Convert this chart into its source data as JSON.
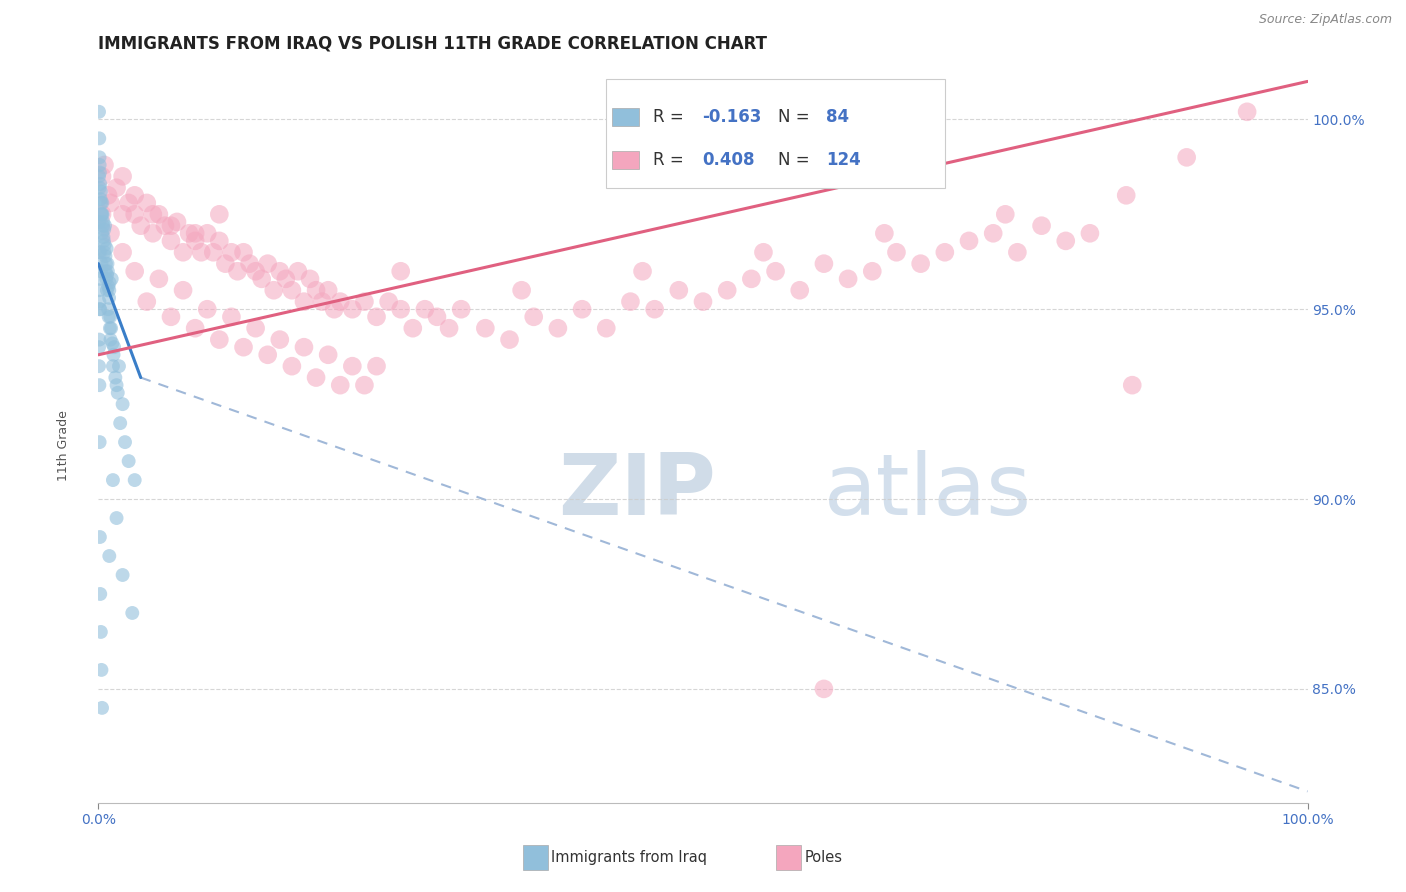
{
  "title": "IMMIGRANTS FROM IRAQ VS POLISH 11TH GRADE CORRELATION CHART",
  "source_text": "Source: ZipAtlas.com",
  "ylabel": "11th Grade",
  "x_min": 0.0,
  "x_max": 100.0,
  "y_min": 82.0,
  "y_max": 101.5,
  "y_ticks": [
    85.0,
    90.0,
    95.0,
    100.0
  ],
  "y_tick_labels": [
    "85.0%",
    "90.0%",
    "95.0%",
    "100.0%"
  ],
  "x_tick_labels": [
    "0.0%",
    "100.0%"
  ],
  "blue_R": -0.163,
  "blue_N": 84,
  "pink_R": 0.408,
  "pink_N": 124,
  "blue_color": "#91bfdb",
  "pink_color": "#f4a6be",
  "blue_line_color": "#3a7ec8",
  "pink_line_color": "#e06080",
  "dash_color": "#a0b8d8",
  "legend_label_blue": "Immigrants from Iraq",
  "legend_label_pink": "Poles",
  "watermark_zip": "ZIP",
  "watermark_atlas": "atlas",
  "tick_color": "#4472c4",
  "blue_line_x0": 0.0,
  "blue_line_y0": 96.2,
  "blue_line_x1": 3.5,
  "blue_line_y1": 93.2,
  "blue_dash_x0": 3.5,
  "blue_dash_y0": 93.2,
  "blue_dash_x1": 100.0,
  "blue_dash_y1": 82.3,
  "pink_line_x0": 0.0,
  "pink_line_y0": 93.8,
  "pink_line_x1": 100.0,
  "pink_line_y1": 101.0,
  "blue_points": [
    [
      0.05,
      100.2
    ],
    [
      0.07,
      99.5
    ],
    [
      0.09,
      99.0
    ],
    [
      0.1,
      98.8
    ],
    [
      0.05,
      98.5
    ],
    [
      0.1,
      98.2
    ],
    [
      0.12,
      98.6
    ],
    [
      0.15,
      98.3
    ],
    [
      0.18,
      97.9
    ],
    [
      0.2,
      98.1
    ],
    [
      0.22,
      97.8
    ],
    [
      0.25,
      97.5
    ],
    [
      0.08,
      97.3
    ],
    [
      0.28,
      97.5
    ],
    [
      0.3,
      97.0
    ],
    [
      0.32,
      97.8
    ],
    [
      0.35,
      97.5
    ],
    [
      0.38,
      97.2
    ],
    [
      0.4,
      97.3
    ],
    [
      0.42,
      96.9
    ],
    [
      0.45,
      96.8
    ],
    [
      0.48,
      97.1
    ],
    [
      0.5,
      96.5
    ],
    [
      0.52,
      96.7
    ],
    [
      0.55,
      97.2
    ],
    [
      0.58,
      96.4
    ],
    [
      0.6,
      96.0
    ],
    [
      0.62,
      96.2
    ],
    [
      0.65,
      95.8
    ],
    [
      0.68,
      96.6
    ],
    [
      0.7,
      95.5
    ],
    [
      0.72,
      95.9
    ],
    [
      0.75,
      96.2
    ],
    [
      0.78,
      96.0
    ],
    [
      0.8,
      95.0
    ],
    [
      0.82,
      95.6
    ],
    [
      0.85,
      94.8
    ],
    [
      0.88,
      95.3
    ],
    [
      0.9,
      95.5
    ],
    [
      0.92,
      95.7
    ],
    [
      0.95,
      94.5
    ],
    [
      0.98,
      94.8
    ],
    [
      1.0,
      94.2
    ],
    [
      1.05,
      94.5
    ],
    [
      1.1,
      95.8
    ],
    [
      1.15,
      94.1
    ],
    [
      1.2,
      93.5
    ],
    [
      1.25,
      93.8
    ],
    [
      1.3,
      94.0
    ],
    [
      1.4,
      93.2
    ],
    [
      1.5,
      93.0
    ],
    [
      1.6,
      92.8
    ],
    [
      1.7,
      93.5
    ],
    [
      1.8,
      92.0
    ],
    [
      2.0,
      92.5
    ],
    [
      2.2,
      91.5
    ],
    [
      2.5,
      91.0
    ],
    [
      3.0,
      90.5
    ],
    [
      0.05,
      96.5
    ],
    [
      0.1,
      95.8
    ],
    [
      0.15,
      95.0
    ],
    [
      0.05,
      94.0
    ],
    [
      0.08,
      93.0
    ],
    [
      0.1,
      91.5
    ],
    [
      0.12,
      89.0
    ],
    [
      0.15,
      87.5
    ],
    [
      0.2,
      86.5
    ],
    [
      0.25,
      85.5
    ],
    [
      0.3,
      84.5
    ],
    [
      0.05,
      95.5
    ],
    [
      0.08,
      95.2
    ],
    [
      0.1,
      95.0
    ],
    [
      0.05,
      93.5
    ],
    [
      0.08,
      94.2
    ],
    [
      1.2,
      90.5
    ],
    [
      0.9,
      88.5
    ],
    [
      1.5,
      89.5
    ],
    [
      2.0,
      88.0
    ],
    [
      2.8,
      87.0
    ],
    [
      0.15,
      96.5
    ],
    [
      0.2,
      96.0
    ],
    [
      0.25,
      96.2
    ]
  ],
  "pink_points": [
    [
      0.3,
      98.5
    ],
    [
      0.5,
      98.8
    ],
    [
      0.8,
      98.0
    ],
    [
      1.0,
      97.8
    ],
    [
      1.5,
      98.2
    ],
    [
      2.0,
      97.5
    ],
    [
      2.5,
      97.8
    ],
    [
      3.0,
      97.5
    ],
    [
      3.5,
      97.2
    ],
    [
      4.0,
      97.8
    ],
    [
      4.5,
      97.0
    ],
    [
      5.0,
      97.5
    ],
    [
      5.5,
      97.2
    ],
    [
      6.0,
      96.8
    ],
    [
      6.5,
      97.3
    ],
    [
      7.0,
      96.5
    ],
    [
      7.5,
      97.0
    ],
    [
      8.0,
      96.8
    ],
    [
      8.5,
      96.5
    ],
    [
      9.0,
      97.0
    ],
    [
      9.5,
      96.5
    ],
    [
      10.0,
      96.8
    ],
    [
      10.5,
      96.2
    ],
    [
      11.0,
      96.5
    ],
    [
      11.5,
      96.0
    ],
    [
      12.0,
      96.5
    ],
    [
      12.5,
      96.2
    ],
    [
      13.0,
      96.0
    ],
    [
      13.5,
      95.8
    ],
    [
      14.0,
      96.2
    ],
    [
      14.5,
      95.5
    ],
    [
      15.0,
      96.0
    ],
    [
      15.5,
      95.8
    ],
    [
      16.0,
      95.5
    ],
    [
      16.5,
      96.0
    ],
    [
      17.0,
      95.2
    ],
    [
      17.5,
      95.8
    ],
    [
      18.0,
      95.5
    ],
    [
      18.5,
      95.2
    ],
    [
      19.0,
      95.5
    ],
    [
      19.5,
      95.0
    ],
    [
      20.0,
      95.2
    ],
    [
      21.0,
      95.0
    ],
    [
      22.0,
      95.2
    ],
    [
      23.0,
      94.8
    ],
    [
      24.0,
      95.2
    ],
    [
      25.0,
      95.0
    ],
    [
      26.0,
      94.5
    ],
    [
      27.0,
      95.0
    ],
    [
      28.0,
      94.8
    ],
    [
      29.0,
      94.5
    ],
    [
      30.0,
      95.0
    ],
    [
      32.0,
      94.5
    ],
    [
      34.0,
      94.2
    ],
    [
      36.0,
      94.8
    ],
    [
      38.0,
      94.5
    ],
    [
      40.0,
      95.0
    ],
    [
      42.0,
      94.5
    ],
    [
      44.0,
      95.2
    ],
    [
      46.0,
      95.0
    ],
    [
      48.0,
      95.5
    ],
    [
      50.0,
      95.2
    ],
    [
      52.0,
      95.5
    ],
    [
      54.0,
      95.8
    ],
    [
      56.0,
      96.0
    ],
    [
      58.0,
      95.5
    ],
    [
      60.0,
      96.2
    ],
    [
      62.0,
      95.8
    ],
    [
      64.0,
      96.0
    ],
    [
      66.0,
      96.5
    ],
    [
      68.0,
      96.2
    ],
    [
      70.0,
      96.5
    ],
    [
      72.0,
      96.8
    ],
    [
      74.0,
      97.0
    ],
    [
      76.0,
      96.5
    ],
    [
      78.0,
      97.2
    ],
    [
      80.0,
      96.8
    ],
    [
      82.0,
      97.0
    ],
    [
      1.0,
      97.0
    ],
    [
      2.0,
      96.5
    ],
    [
      3.0,
      96.0
    ],
    [
      4.0,
      95.2
    ],
    [
      5.0,
      95.8
    ],
    [
      6.0,
      94.8
    ],
    [
      7.0,
      95.5
    ],
    [
      8.0,
      94.5
    ],
    [
      9.0,
      95.0
    ],
    [
      10.0,
      94.2
    ],
    [
      11.0,
      94.8
    ],
    [
      12.0,
      94.0
    ],
    [
      13.0,
      94.5
    ],
    [
      14.0,
      93.8
    ],
    [
      15.0,
      94.2
    ],
    [
      16.0,
      93.5
    ],
    [
      17.0,
      94.0
    ],
    [
      18.0,
      93.2
    ],
    [
      19.0,
      93.8
    ],
    [
      20.0,
      93.0
    ],
    [
      21.0,
      93.5
    ],
    [
      22.0,
      93.0
    ],
    [
      23.0,
      93.5
    ],
    [
      0.3,
      97.5
    ],
    [
      25.0,
      96.0
    ],
    [
      35.0,
      95.5
    ],
    [
      45.0,
      96.0
    ],
    [
      55.0,
      96.5
    ],
    [
      65.0,
      97.0
    ],
    [
      75.0,
      97.5
    ],
    [
      85.0,
      98.0
    ],
    [
      90.0,
      99.0
    ],
    [
      95.0,
      100.2
    ],
    [
      60.0,
      85.0
    ],
    [
      85.5,
      93.0
    ],
    [
      2.0,
      98.5
    ],
    [
      3.0,
      98.0
    ],
    [
      4.5,
      97.5
    ],
    [
      6.0,
      97.2
    ],
    [
      8.0,
      97.0
    ],
    [
      10.0,
      97.5
    ]
  ],
  "dot_size_blue": 100,
  "dot_size_pink": 180,
  "title_fontsize": 12,
  "axis_label_fontsize": 9,
  "tick_fontsize": 10,
  "legend_fontsize": 12
}
